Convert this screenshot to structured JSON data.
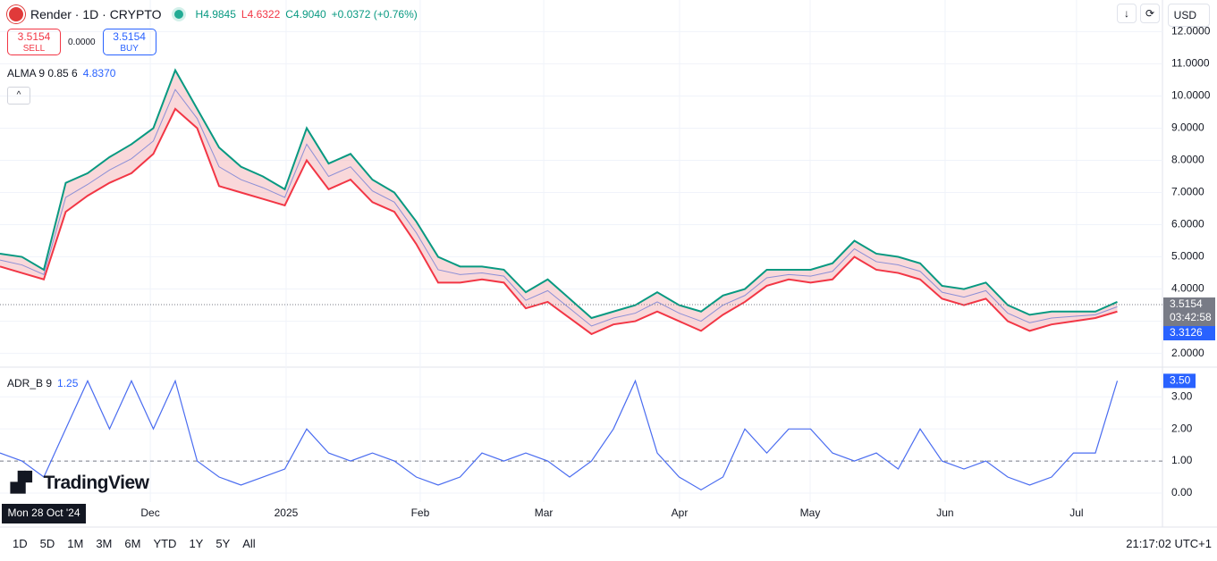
{
  "header": {
    "symbol": "Render · 1D · CRYPTO",
    "high": "H4.9845",
    "low": "L4.6322",
    "close": "C4.9040",
    "change": "+0.0372 (+0.76%)"
  },
  "trade": {
    "sell_price": "3.5154",
    "sell": "SELL",
    "spread": "0.0000",
    "buy_price": "3.5154",
    "buy": "BUY"
  },
  "currency": "USD",
  "brand": "TradingView",
  "timeframes": [
    "1D",
    "5D",
    "1M",
    "3M",
    "6M",
    "YTD",
    "1Y",
    "5Y",
    "All"
  ],
  "clock": "21:17:02 UTC+1",
  "countdown": "03:42:58",
  "crosshair_date": "Mon 28 Oct '24",
  "xlim": [
    0,
    51
  ],
  "xticks": [
    {
      "value": 6.86,
      "label": "Dec"
    },
    {
      "value": 13.06,
      "label": "2025"
    },
    {
      "value": 19.18,
      "label": "Feb"
    },
    {
      "value": 24.82,
      "label": "Mar"
    },
    {
      "value": 31.02,
      "label": "Apr"
    },
    {
      "value": 36.98,
      "label": "May"
    },
    {
      "value": 43.14,
      "label": "Jun"
    },
    {
      "value": 49.14,
      "label": "Jul"
    }
  ],
  "chart_data": [
    {
      "type": "band",
      "title": "ALMA 9 0.85 6",
      "last_value": "4.8370",
      "ylim": [
        1.6,
        12.15
      ],
      "yticks": [
        {
          "value": 12,
          "label": "12.0000"
        },
        {
          "value": 11,
          "label": "11.0000"
        },
        {
          "value": 10,
          "label": "10.0000"
        },
        {
          "value": 9,
          "label": "9.0000"
        },
        {
          "value": 8,
          "label": "8.0000"
        },
        {
          "value": 7,
          "label": "7.0000"
        },
        {
          "value": 6,
          "label": "6.0000"
        },
        {
          "value": 5,
          "label": "5.0000"
        },
        {
          "value": 4,
          "label": "4.0000"
        },
        {
          "value": 3,
          "label": "3.0000"
        },
        {
          "value": 2,
          "label": "2.0000"
        }
      ],
      "price_line": 3.5154,
      "second_price": 3.3126,
      "series": [
        {
          "color": "#089981",
          "values": [
            5.1,
            5.0,
            4.6,
            7.3,
            7.6,
            8.1,
            8.5,
            9.0,
            10.8,
            9.6,
            8.4,
            7.8,
            7.5,
            7.1,
            9.0,
            7.9,
            8.2,
            7.4,
            7.0,
            6.1,
            5.0,
            4.7,
            4.7,
            4.6,
            3.9,
            4.3,
            3.7,
            3.1,
            3.3,
            3.5,
            3.9,
            3.5,
            3.3,
            3.8,
            4.0,
            4.6,
            4.6,
            4.6,
            4.8,
            5.5,
            5.1,
            5.0,
            4.8,
            4.1,
            4.0,
            4.2,
            3.5,
            3.2,
            3.3,
            3.3,
            3.3,
            3.6
          ]
        },
        {
          "color": "#f23645",
          "values": [
            4.7,
            4.5,
            4.3,
            6.4,
            6.9,
            7.3,
            7.6,
            8.2,
            9.6,
            9.0,
            7.2,
            7.0,
            6.8,
            6.6,
            8.0,
            7.1,
            7.4,
            6.7,
            6.4,
            5.4,
            4.2,
            4.2,
            4.3,
            4.2,
            3.4,
            3.6,
            3.1,
            2.6,
            2.9,
            3.0,
            3.3,
            3.0,
            2.7,
            3.2,
            3.6,
            4.1,
            4.3,
            4.2,
            4.3,
            5.0,
            4.6,
            4.5,
            4.3,
            3.7,
            3.5,
            3.7,
            3.0,
            2.7,
            2.9,
            3.0,
            3.1,
            3.3
          ]
        },
        {
          "color": "#8c8fd6",
          "values": [
            4.9,
            4.75,
            4.45,
            6.85,
            7.25,
            7.7,
            8.05,
            8.6,
            10.2,
            9.3,
            7.8,
            7.4,
            7.15,
            6.85,
            8.5,
            7.5,
            7.8,
            7.05,
            6.7,
            5.75,
            4.6,
            4.45,
            4.5,
            4.4,
            3.65,
            3.95,
            3.4,
            2.85,
            3.1,
            3.25,
            3.6,
            3.25,
            3.0,
            3.5,
            3.8,
            4.35,
            4.45,
            4.4,
            4.55,
            5.25,
            4.85,
            4.75,
            4.55,
            3.9,
            3.75,
            3.95,
            3.25,
            2.95,
            3.1,
            3.15,
            3.2,
            3.45
          ]
        }
      ]
    },
    {
      "type": "line",
      "title": "ADR_B 9",
      "last_value": "1.25",
      "ylim": [
        -0.28,
        3.9
      ],
      "yticks": [
        {
          "value": 3,
          "label": "3.00"
        },
        {
          "value": 2,
          "label": "2.00"
        },
        {
          "value": 1,
          "label": "1.00"
        },
        {
          "value": 0,
          "label": "0.00"
        }
      ],
      "ref_line": 1,
      "end_label": {
        "value": 3.5,
        "label": "3.50"
      },
      "series": [
        {
          "color": "#4a6cf0",
          "values": [
            1.25,
            1.0,
            0.5,
            2.0,
            3.5,
            2.0,
            3.5,
            2.0,
            3.5,
            1.0,
            0.5,
            0.25,
            0.5,
            0.75,
            2.0,
            1.25,
            1.0,
            1.25,
            1.0,
            0.5,
            0.25,
            0.5,
            1.25,
            1.0,
            1.25,
            1.0,
            0.5,
            1.0,
            2.0,
            3.5,
            1.25,
            0.5,
            0.1,
            0.5,
            2.0,
            1.25,
            2.0,
            2.0,
            1.25,
            1.0,
            1.25,
            0.75,
            2.0,
            1.0,
            0.75,
            1.0,
            0.5,
            0.25,
            0.5,
            1.25,
            1.25,
            3.5
          ]
        }
      ]
    }
  ]
}
